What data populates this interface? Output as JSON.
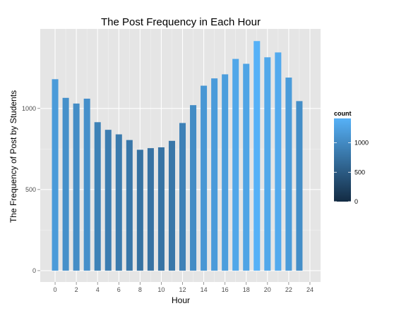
{
  "chart_data": {
    "type": "bar",
    "title": "The Post Frequency in Each Hour",
    "xlabel": "Hour",
    "ylabel": "The Frequency of Post by Students",
    "x_ticks": [
      "0",
      "2",
      "4",
      "6",
      "8",
      "10",
      "12",
      "14",
      "16",
      "18",
      "20",
      "22",
      "24"
    ],
    "y_ticks": [
      "0",
      "500",
      "1000"
    ],
    "xlim": [
      -1.4,
      25.0
    ],
    "ylim": [
      -70,
      1490
    ],
    "categories": [
      "0",
      "1",
      "2",
      "3",
      "4",
      "5",
      "6",
      "7",
      "8",
      "9",
      "10",
      "11",
      "12",
      "13",
      "14",
      "15",
      "16",
      "17",
      "18",
      "19",
      "20",
      "21",
      "22",
      "23"
    ],
    "values": [
      1180,
      1065,
      1030,
      1060,
      915,
      868,
      840,
      805,
      745,
      755,
      760,
      800,
      910,
      1020,
      1140,
      1185,
      1210,
      1305,
      1275,
      1415,
      1315,
      1345,
      1190,
      1045
    ],
    "grid": true,
    "legend": {
      "title": "count",
      "position": "right",
      "ticks": [
        "0",
        "500",
        "1000"
      ],
      "range": [
        0,
        1415
      ],
      "color_low": "#132b43",
      "color_high": "#56b1f7"
    },
    "colors": {
      "panel": "#e5e5e5",
      "grid_major": "#ffffff",
      "grid_minor": "#f2f2f2"
    }
  }
}
